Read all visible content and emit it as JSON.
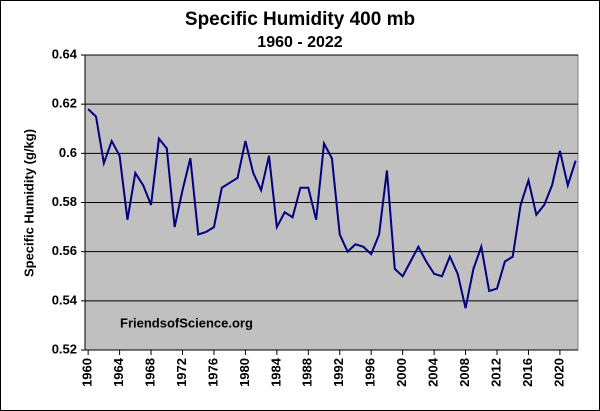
{
  "chart_data": {
    "type": "line",
    "title": "Specific Humidity  400 mb",
    "subtitle": "1960 - 2022",
    "y_label": "Specific Humidity (g/kg)",
    "annotation": "FriendsofScience.org",
    "x": [
      1960,
      1961,
      1962,
      1963,
      1964,
      1965,
      1966,
      1967,
      1968,
      1969,
      1970,
      1971,
      1972,
      1973,
      1974,
      1975,
      1976,
      1977,
      1978,
      1979,
      1980,
      1981,
      1982,
      1983,
      1984,
      1985,
      1986,
      1987,
      1988,
      1989,
      1990,
      1991,
      1992,
      1993,
      1994,
      1995,
      1996,
      1997,
      1998,
      1999,
      2000,
      2001,
      2002,
      2003,
      2004,
      2005,
      2006,
      2007,
      2008,
      2009,
      2010,
      2011,
      2012,
      2013,
      2014,
      2015,
      2016,
      2017,
      2018,
      2019,
      2020,
      2021,
      2022
    ],
    "values": [
      0.618,
      0.615,
      0.596,
      0.605,
      0.599,
      0.573,
      0.592,
      0.587,
      0.579,
      0.606,
      0.602,
      0.57,
      0.585,
      0.598,
      0.567,
      0.568,
      0.57,
      0.586,
      0.588,
      0.59,
      0.605,
      0.592,
      0.585,
      0.599,
      0.57,
      0.576,
      0.574,
      0.586,
      0.586,
      0.573,
      0.604,
      0.598,
      0.567,
      0.56,
      0.563,
      0.562,
      0.559,
      0.567,
      0.593,
      0.553,
      0.55,
      0.556,
      0.562,
      0.556,
      0.551,
      0.55,
      0.558,
      0.551,
      0.537,
      0.553,
      0.562,
      0.544,
      0.545,
      0.556,
      0.558,
      0.579,
      0.589,
      0.575,
      0.579,
      0.587,
      0.601,
      0.587,
      0.597
    ],
    "color": "#000080",
    "background": "#c0c0c0",
    "xlim": [
      1959.6,
      2022.3
    ],
    "xticks": [
      1960,
      1964,
      1968,
      1972,
      1976,
      1980,
      1984,
      1988,
      1992,
      1996,
      2000,
      2004,
      2008,
      2012,
      2016,
      2020
    ],
    "ylim": [
      0.52,
      0.64
    ],
    "yticks": [
      0.52,
      0.54,
      0.56,
      0.58,
      0.6,
      0.62,
      0.64
    ],
    "grid": true
  }
}
